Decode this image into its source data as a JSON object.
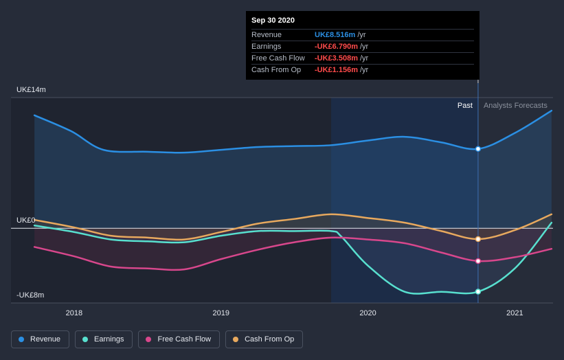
{
  "chart_data": {
    "type": "line",
    "y_axis": {
      "top_label": "UK£14m",
      "zero_label": "UK£0",
      "bottom_label": "-UK£8m",
      "ylim": [
        -8,
        14
      ]
    },
    "x_axis": {
      "ticks": [
        "2018",
        "2019",
        "2020",
        "2021"
      ],
      "tick_values": [
        2018,
        2019,
        2020,
        2021
      ],
      "xlim": [
        2017.72,
        2021.26
      ]
    },
    "sections": {
      "past_label": "Past",
      "forecast_label": "Analysts Forecasts",
      "divider_x": 2020.75,
      "highlight_start_x": 2019.75
    },
    "series": [
      {
        "name": "Revenue",
        "color": "#2b8fe3",
        "fill": "#2a5f8e",
        "x": [
          2017.73,
          2017.98,
          2018.2,
          2018.5,
          2018.75,
          2019.0,
          2019.25,
          2019.5,
          2019.75,
          2020.0,
          2020.25,
          2020.5,
          2020.75,
          2021.0,
          2021.25
        ],
        "y": [
          12.1,
          10.4,
          8.4,
          8.2,
          8.1,
          8.4,
          8.7,
          8.8,
          8.9,
          9.4,
          9.8,
          9.2,
          8.5,
          10.2,
          12.6
        ]
      },
      {
        "name": "Earnings",
        "color": "#58e0cf",
        "fill": "#3a4a6e",
        "x": [
          2017.73,
          2018.0,
          2018.25,
          2018.5,
          2018.75,
          2019.0,
          2019.25,
          2019.5,
          2019.75,
          2019.82,
          2020.0,
          2020.25,
          2020.5,
          2020.75,
          2021.0,
          2021.25
        ],
        "y": [
          0.3,
          -0.4,
          -1.2,
          -1.4,
          -1.5,
          -0.8,
          -0.3,
          -0.3,
          -0.3,
          -0.9,
          -4.0,
          -6.8,
          -6.8,
          -6.79,
          -4.3,
          0.6
        ]
      },
      {
        "name": "Free Cash Flow",
        "color": "#d8478c",
        "fill": "#5a2a46",
        "x": [
          2017.73,
          2018.0,
          2018.25,
          2018.5,
          2018.75,
          2019.0,
          2019.25,
          2019.5,
          2019.75,
          2020.0,
          2020.25,
          2020.5,
          2020.75,
          2021.0,
          2021.25
        ],
        "y": [
          -2.0,
          -3.0,
          -4.1,
          -4.3,
          -4.4,
          -3.3,
          -2.3,
          -1.5,
          -1.0,
          -1.2,
          -1.6,
          -2.6,
          -3.51,
          -3.1,
          -2.2
        ]
      },
      {
        "name": "Cash From Op",
        "color": "#e8a95e",
        "fill": "#5a4430",
        "x": [
          2017.73,
          2018.0,
          2018.25,
          2018.5,
          2018.75,
          2019.0,
          2019.25,
          2019.5,
          2019.75,
          2020.0,
          2020.25,
          2020.5,
          2020.75,
          2021.0,
          2021.25
        ],
        "y": [
          0.9,
          0.1,
          -0.8,
          -1.0,
          -1.2,
          -0.4,
          0.5,
          1.0,
          1.5,
          1.1,
          0.6,
          -0.3,
          -1.16,
          -0.2,
          1.5
        ]
      }
    ],
    "highlight_point_x": 2020.75,
    "tooltip": {
      "date": "Sep 30 2020",
      "rows": [
        {
          "label": "Revenue",
          "value": "UK£8.516m",
          "unit": "/yr",
          "color": "#2b8fe3"
        },
        {
          "label": "Earnings",
          "value": "-UK£6.790m",
          "unit": "/yr",
          "color": "#ff4b4b"
        },
        {
          "label": "Free Cash Flow",
          "value": "-UK£3.508m",
          "unit": "/yr",
          "color": "#ff4b4b"
        },
        {
          "label": "Cash From Op",
          "value": "-UK£1.156m",
          "unit": "/yr",
          "color": "#ff4b4b"
        }
      ]
    }
  },
  "legend": [
    {
      "label": "Revenue",
      "color": "#2b8fe3"
    },
    {
      "label": "Earnings",
      "color": "#58e0cf"
    },
    {
      "label": "Free Cash Flow",
      "color": "#d8478c"
    },
    {
      "label": "Cash From Op",
      "color": "#e8a95e"
    }
  ]
}
